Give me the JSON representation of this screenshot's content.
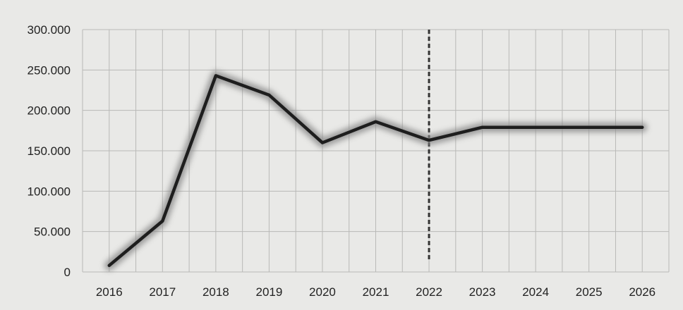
{
  "chart_data": {
    "type": "line",
    "title": "",
    "xlabel": "",
    "ylabel": "",
    "categories": [
      "2016",
      "2017",
      "2018",
      "2019",
      "2020",
      "2021",
      "2022",
      "2023",
      "2024",
      "2025",
      "2026"
    ],
    "series": [
      {
        "values": [
          8000,
          63000,
          243000,
          219000,
          160000,
          186000,
          163000,
          179000,
          179000,
          179000,
          179000
        ]
      }
    ],
    "ylim": [
      0,
      300000
    ],
    "yticks": [
      0,
      50000,
      100000,
      150000,
      200000,
      250000,
      300000
    ],
    "ytick_labels": [
      "0",
      "50.000",
      "100.000",
      "150.000",
      "200.000",
      "250.000",
      "300.000"
    ],
    "grid": true,
    "marker_line": {
      "category": "2022",
      "style": "dashed"
    },
    "colors": {
      "line": "#1e1e1e",
      "glow": "#8a8a8a",
      "grid": "#b9b9b7",
      "background": "#e9e9e7",
      "marker_line": "#333333"
    }
  }
}
